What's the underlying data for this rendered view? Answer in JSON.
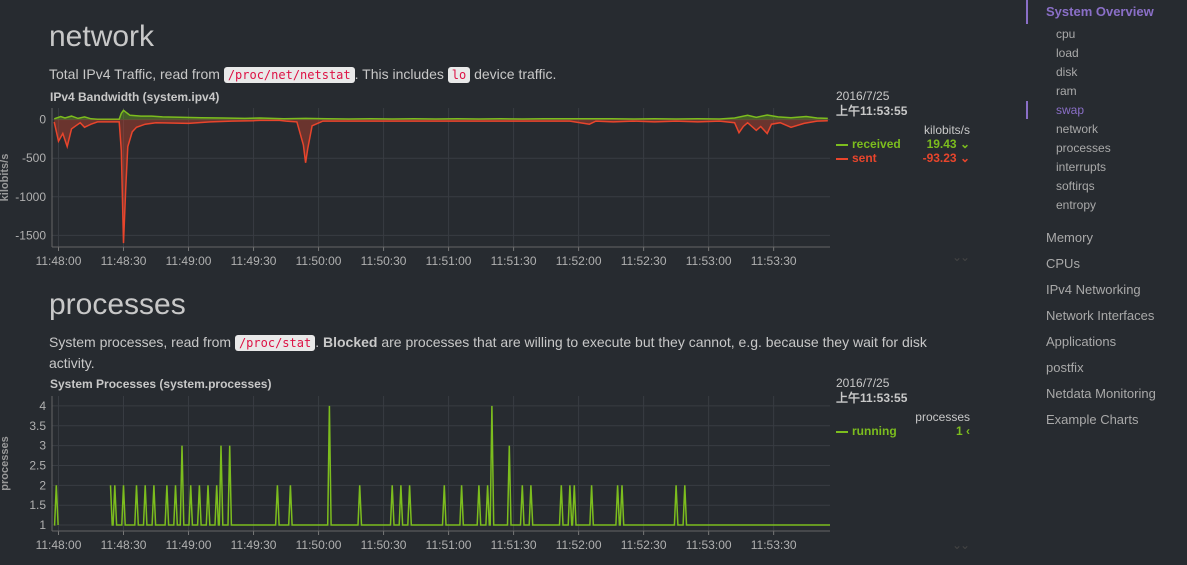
{
  "network": {
    "title": "network",
    "desc_before": "Total IPv4 Traffic, read from ",
    "desc_code1": "/proc/net/netstat",
    "desc_middle": ". This includes ",
    "desc_code2": "lo",
    "desc_after": " device traffic.",
    "chart_title": "IPv4 Bandwidth (system.ipv4)",
    "legend": {
      "date": "2016/7/25",
      "time": "上午11:53:55",
      "units": "kilobits/s",
      "received_label": "received",
      "received_value": "19.43",
      "sent_label": "sent",
      "sent_value": "-93.23"
    }
  },
  "processes": {
    "title": "processes",
    "desc_before": "System processes, read from ",
    "desc_code": "/proc/stat",
    "desc_middle": ". ",
    "desc_bold": "Blocked",
    "desc_after": " are processes that are willing to execute but they cannot, e.g. because they wait for disk activity.",
    "chart_title": "System Processes (system.processes)",
    "legend": {
      "date": "2016/7/25",
      "time": "上午11:53:55",
      "units": "processes",
      "running_label": "running",
      "running_value": "1"
    }
  },
  "nav": {
    "active_section": "System Overview",
    "sub_items": [
      "cpu",
      "load",
      "disk",
      "ram",
      "swap",
      "network",
      "processes",
      "interrupts",
      "softirqs",
      "entropy"
    ],
    "active_sub": "swap",
    "sections": [
      "Memory",
      "CPUs",
      "IPv4 Networking",
      "Network Interfaces",
      "Applications",
      "postfix",
      "Netdata Monitoring",
      "Example Charts"
    ]
  },
  "colors": {
    "received": "#7cbd1e",
    "sent": "#e8452c",
    "running": "#7cbd1e",
    "accent": "#8a6fc7",
    "background": "#272b30"
  },
  "chart_data": [
    {
      "type": "area",
      "title": "IPv4 Bandwidth (system.ipv4)",
      "ylabel": "kilobits/s",
      "xlabel": "",
      "x_ticks": [
        "11:48:00",
        "11:48:30",
        "11:49:00",
        "11:49:30",
        "11:50:00",
        "11:50:30",
        "11:51:00",
        "11:51:30",
        "11:52:00",
        "11:52:30",
        "11:53:00",
        "11:53:30"
      ],
      "y_ticks": [
        0,
        -500,
        -1000,
        -1500
      ],
      "ylim": [
        -1650,
        150
      ],
      "xlim_seconds_from_start": [
        -3,
        356
      ],
      "grid": true,
      "gaps": [
        [
          23,
          27
        ],
        [
          96,
          101
        ],
        [
          231,
          235
        ]
      ],
      "series": [
        {
          "name": "received",
          "color": "#7cbd1e",
          "points": [
            [
              -2,
              10
            ],
            [
              1,
              40
            ],
            [
              3,
              20
            ],
            [
              6,
              45
            ],
            [
              9,
              15
            ],
            [
              12,
              35
            ],
            [
              15,
              10
            ],
            [
              18,
              5
            ],
            [
              28,
              5
            ],
            [
              29,
              80
            ],
            [
              30,
              120
            ],
            [
              33,
              55
            ],
            [
              38,
              45
            ],
            [
              43,
              45
            ],
            [
              48,
              35
            ],
            [
              56,
              30
            ],
            [
              66,
              25
            ],
            [
              76,
              20
            ],
            [
              86,
              15
            ],
            [
              93,
              20
            ],
            [
              104,
              10
            ],
            [
              114,
              15
            ],
            [
              124,
              10
            ],
            [
              134,
              8
            ],
            [
              144,
              10
            ],
            [
              154,
              8
            ],
            [
              164,
              10
            ],
            [
              174,
              8
            ],
            [
              184,
              10
            ],
            [
              194,
              8
            ],
            [
              204,
              10
            ],
            [
              214,
              8
            ],
            [
              224,
              10
            ],
            [
              227,
              10
            ],
            [
              238,
              10
            ],
            [
              245,
              12
            ],
            [
              255,
              10
            ],
            [
              265,
              8
            ],
            [
              275,
              10
            ],
            [
              285,
              8
            ],
            [
              295,
              10
            ],
            [
              305,
              8
            ],
            [
              312,
              20
            ],
            [
              318,
              55
            ],
            [
              322,
              30
            ],
            [
              327,
              60
            ],
            [
              332,
              35
            ],
            [
              338,
              25
            ],
            [
              345,
              40
            ],
            [
              350,
              20
            ],
            [
              355,
              15
            ]
          ]
        },
        {
          "name": "sent",
          "color": "#e8452c",
          "points": [
            [
              -2,
              -30
            ],
            [
              0,
              -280
            ],
            [
              2,
              -180
            ],
            [
              4,
              -350
            ],
            [
              6,
              -120
            ],
            [
              8,
              -80
            ],
            [
              10,
              -40
            ],
            [
              12,
              -100
            ],
            [
              15,
              -60
            ],
            [
              18,
              -30
            ],
            [
              28,
              -30
            ],
            [
              29,
              -400
            ],
            [
              30,
              -1600
            ],
            [
              31,
              -900
            ],
            [
              32,
              -350
            ],
            [
              34,
              -160
            ],
            [
              36,
              -100
            ],
            [
              40,
              -60
            ],
            [
              45,
              -40
            ],
            [
              60,
              -50
            ],
            [
              70,
              -30
            ],
            [
              80,
              -20
            ],
            [
              90,
              -15
            ],
            [
              93,
              -10
            ],
            [
              102,
              -10
            ],
            [
              105,
              -20
            ],
            [
              110,
              -30
            ],
            [
              113,
              -330
            ],
            [
              114,
              -560
            ],
            [
              115,
              -380
            ],
            [
              117,
              -80
            ],
            [
              122,
              -20
            ],
            [
              130,
              -20
            ],
            [
              140,
              -20
            ],
            [
              150,
              -20
            ],
            [
              160,
              -20
            ],
            [
              170,
              -20
            ],
            [
              180,
              -20
            ],
            [
              190,
              -20
            ],
            [
              200,
              -20
            ],
            [
              210,
              -20
            ],
            [
              220,
              -20
            ],
            [
              227,
              -20
            ],
            [
              236,
              -20
            ],
            [
              245,
              -60
            ],
            [
              248,
              -20
            ],
            [
              256,
              -30
            ],
            [
              265,
              -20
            ],
            [
              275,
              -30
            ],
            [
              285,
              -20
            ],
            [
              295,
              -30
            ],
            [
              305,
              -20
            ],
            [
              312,
              -40
            ],
            [
              314,
              -170
            ],
            [
              316,
              -90
            ],
            [
              318,
              -40
            ],
            [
              322,
              -140
            ],
            [
              324,
              -90
            ],
            [
              327,
              -180
            ],
            [
              329,
              -60
            ],
            [
              333,
              -40
            ],
            [
              338,
              -100
            ],
            [
              344,
              -50
            ],
            [
              350,
              -20
            ],
            [
              355,
              -15
            ]
          ]
        }
      ]
    },
    {
      "type": "line",
      "title": "System Processes (system.processes)",
      "ylabel": "processes",
      "xlabel": "",
      "x_ticks": [
        "11:48:00",
        "11:48:30",
        "11:49:00",
        "11:49:30",
        "11:50:00",
        "11:50:30",
        "11:51:00",
        "11:51:30",
        "11:52:00",
        "11:52:30",
        "11:53:00",
        "11:53:30"
      ],
      "y_ticks": [
        1,
        1.5,
        2,
        2.5,
        3,
        3.5,
        4
      ],
      "ylim": [
        0.85,
        4.25
      ],
      "xlim_seconds_from_start": [
        -3,
        356
      ],
      "grid": true,
      "gaps": [
        [
          17,
          24
        ],
        [
          96,
          100
        ]
      ],
      "series": [
        {
          "name": "running",
          "color": "#7cbd1e",
          "spikes": [
            [
              -1,
              2
            ],
            [
              24,
              2
            ],
            [
              26,
              2
            ],
            [
              30,
              2
            ],
            [
              36,
              2
            ],
            [
              40,
              2
            ],
            [
              44,
              2
            ],
            [
              50,
              2
            ],
            [
              54,
              2
            ],
            [
              57,
              3
            ],
            [
              61,
              2
            ],
            [
              65,
              2
            ],
            [
              69,
              2
            ],
            [
              73,
              2
            ],
            [
              75,
              3
            ],
            [
              79,
              3
            ],
            [
              101,
              2
            ],
            [
              107,
              2
            ],
            [
              125,
              4
            ],
            [
              139,
              2
            ],
            [
              154,
              2
            ],
            [
              158,
              2
            ],
            [
              162,
              2
            ],
            [
              178,
              2
            ],
            [
              186,
              2
            ],
            [
              194,
              2
            ],
            [
              198,
              2
            ],
            [
              200,
              4
            ],
            [
              208,
              3
            ],
            [
              214,
              2
            ],
            [
              218,
              2
            ],
            [
              232,
              2
            ],
            [
              236,
              2
            ],
            [
              238,
              2
            ],
            [
              246,
              2
            ],
            [
              258,
              2
            ],
            [
              260,
              2
            ],
            [
              285,
              2
            ],
            [
              289,
              2
            ]
          ]
        }
      ]
    }
  ]
}
